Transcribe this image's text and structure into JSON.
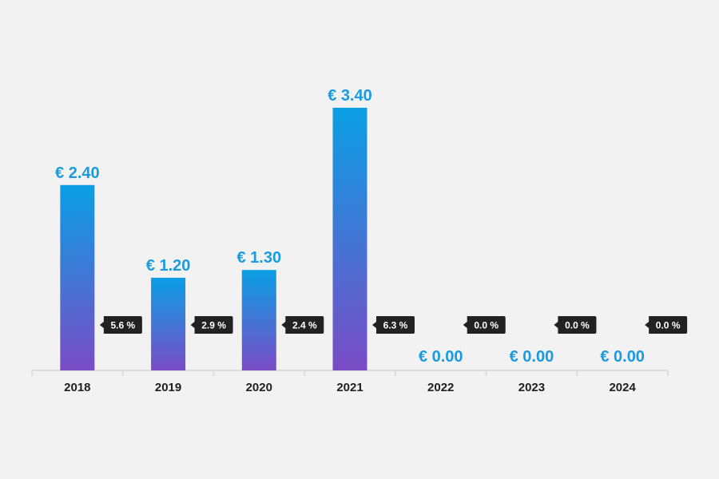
{
  "chart_data": {
    "type": "bar",
    "title": "",
    "xlabel": "",
    "ylabel": "",
    "categories": [
      "2018",
      "2019",
      "2020",
      "2021",
      "2022",
      "2023",
      "2024"
    ],
    "values": [
      2.4,
      1.2,
      1.3,
      3.4,
      0.0,
      0.0,
      0.0
    ],
    "value_labels": [
      "€ 2.40",
      "€ 1.20",
      "€ 1.30",
      "€ 3.40",
      "€ 0.00",
      "€ 0.00",
      "€ 0.00"
    ],
    "percent_labels": [
      "5.6 %",
      "2.9 %",
      "2.4 %",
      "6.3 %",
      "0.0 %",
      "0.0 %",
      "0.0 %"
    ],
    "percent_values": [
      5.6,
      2.9,
      2.4,
      6.3,
      0.0,
      0.0,
      0.0
    ],
    "ylim": [
      0,
      3.4
    ],
    "grid": false,
    "colors": {
      "bar_top": "#0a9fe4",
      "bar_bottom": "#7a4cc6",
      "label": "#1a9be0",
      "badge": "#222222",
      "axis": "#dddddd"
    }
  }
}
